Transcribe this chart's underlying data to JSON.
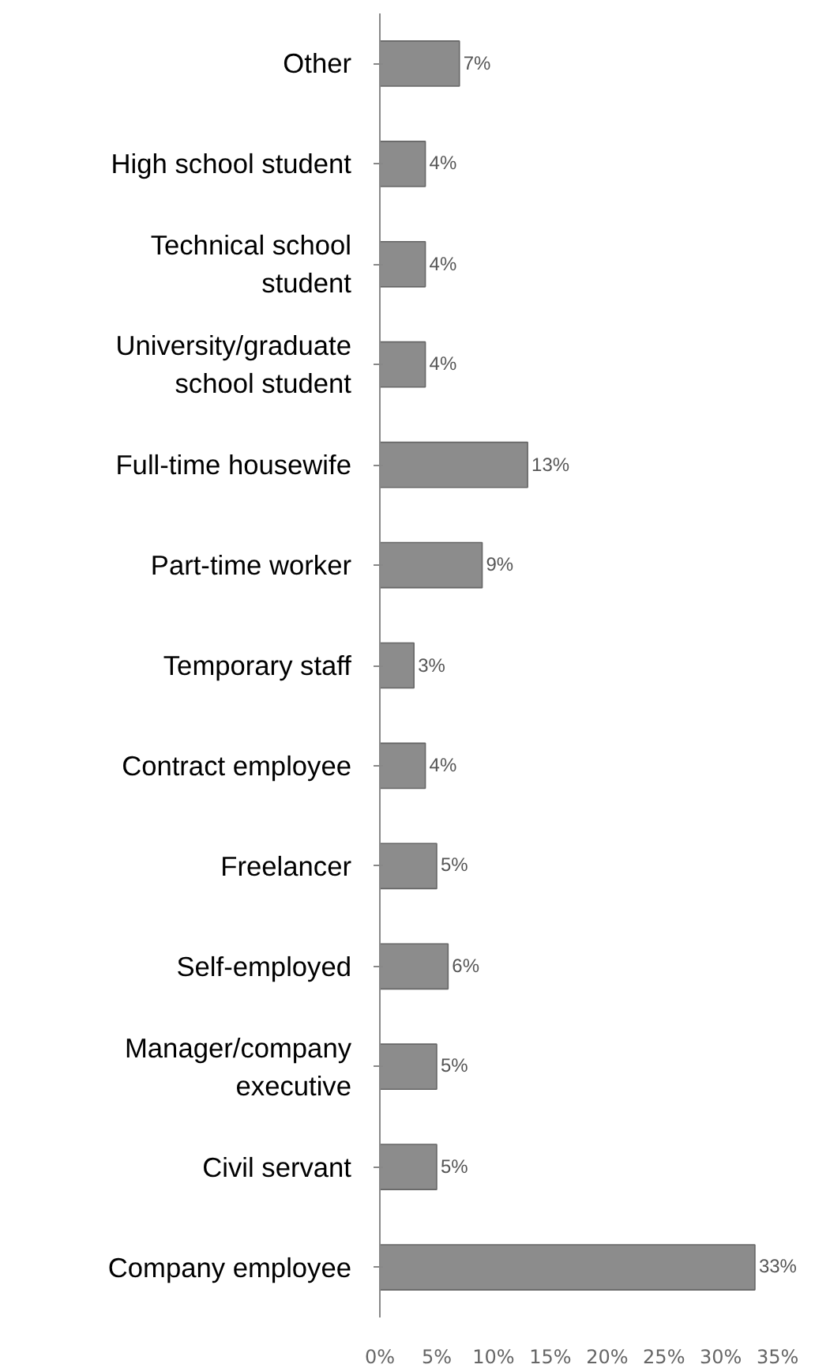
{
  "chart_data": {
    "type": "bar",
    "orientation": "horizontal",
    "categories": [
      "Other",
      "High school student",
      "Technical school student",
      "University/graduate school student",
      "Full-time housewife",
      "Part-time worker",
      "Temporary staff",
      "Contract employee",
      "Freelancer",
      "Self-employed",
      "Manager/company executive",
      "Civil servant",
      "Company employee"
    ],
    "values": [
      7,
      4,
      4,
      4,
      13,
      9,
      3,
      4,
      5,
      6,
      5,
      5,
      33
    ],
    "value_labels": [
      "7%",
      "4%",
      "4%",
      "4%",
      "13%",
      "9%",
      "3%",
      "4%",
      "5%",
      "6%",
      "5%",
      "5%",
      "33%"
    ],
    "color": "#8c8c8c",
    "xlim": [
      0,
      35
    ],
    "xticks": [
      {
        "value": 0,
        "label": "0%"
      },
      {
        "value": 5,
        "label": "5%"
      },
      {
        "value": 10,
        "label": "10%"
      },
      {
        "value": 15,
        "label": "15%"
      },
      {
        "value": 20,
        "label": "20%"
      },
      {
        "value": 25,
        "label": "25%"
      },
      {
        "value": 30,
        "label": "30%"
      },
      {
        "value": 35,
        "label": "35%"
      }
    ],
    "grid": false
  }
}
